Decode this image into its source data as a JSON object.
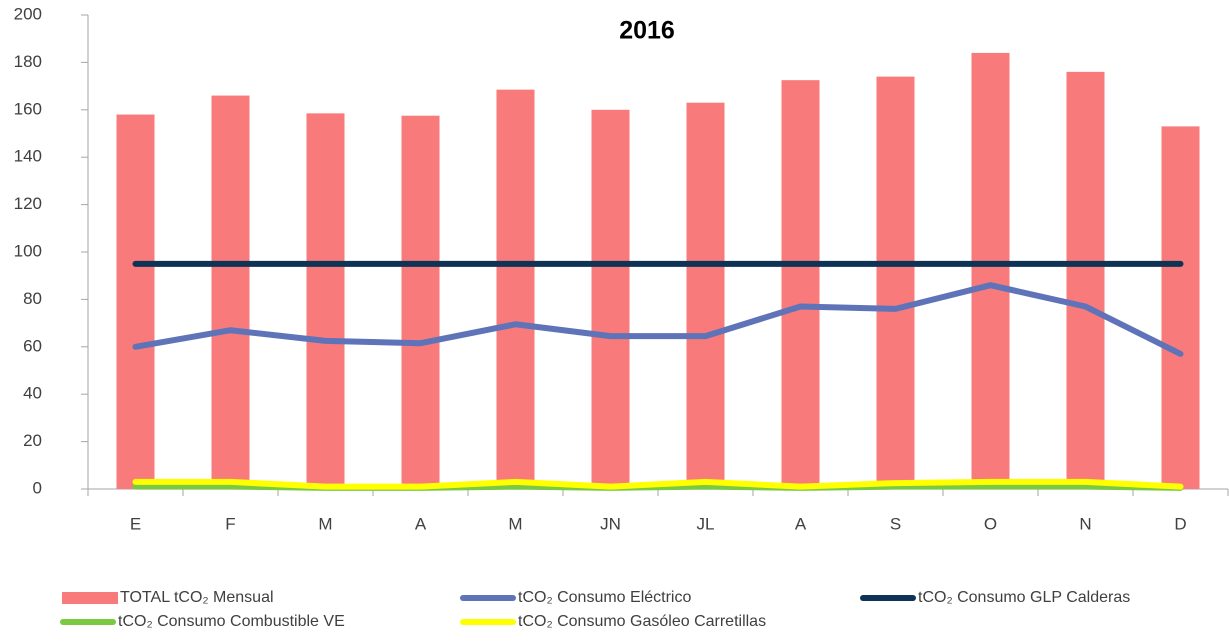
{
  "chart_data": {
    "type": "bar",
    "title": "2016",
    "categories": [
      "E",
      "F",
      "M",
      "A",
      "M",
      "JN",
      "JL",
      "A",
      "S",
      "O",
      "N",
      "D"
    ],
    "ylim": [
      0,
      200
    ],
    "yticks": [
      0,
      20,
      40,
      60,
      80,
      100,
      120,
      140,
      160,
      180,
      200
    ],
    "grid": false,
    "legend": "bottom",
    "series": [
      {
        "name": "TOTAL tCO₂ Mensual",
        "type": "bar",
        "color": "#f87a7a",
        "values": [
          158,
          166,
          158.5,
          157.5,
          168.5,
          160,
          163,
          172.5,
          174,
          184,
          176,
          153
        ]
      },
      {
        "name": "tCO₂ Consumo Eléctrico",
        "type": "line",
        "color": "#5f73b8",
        "values": [
          60,
          67,
          62.5,
          61.5,
          69.5,
          64.5,
          64.5,
          77,
          76,
          86,
          77,
          57
        ]
      },
      {
        "name": "tCO₂ Consumo GLP Calderas",
        "type": "line",
        "color": "#0f3354",
        "values": [
          95,
          95,
          95,
          95,
          95,
          95,
          95,
          95,
          95,
          95,
          95,
          95
        ]
      },
      {
        "name": "tCO₂ Consumo Combustible VE",
        "type": "line",
        "color": "#7ac943",
        "values": [
          1,
          1,
          0.5,
          0.5,
          1,
          0.5,
          1,
          0.5,
          1,
          1,
          1,
          0.5
        ]
      },
      {
        "name": "tCO₂ Consumo Gasóleo Carretillas",
        "type": "line",
        "color": "#ffff00",
        "values": [
          3,
          3,
          1,
          1,
          3,
          1,
          3,
          1,
          2.5,
          3,
          3,
          1
        ]
      }
    ]
  }
}
